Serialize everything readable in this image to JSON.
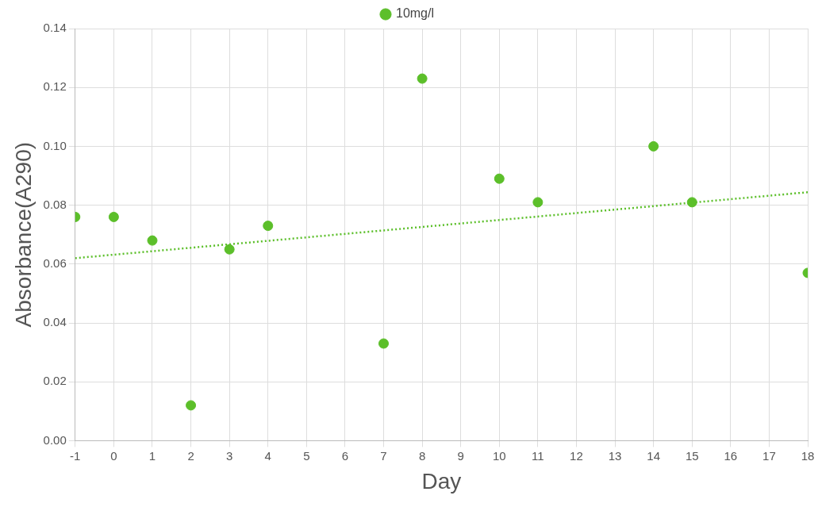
{
  "chart_data": {
    "type": "scatter",
    "xlabel": "Day",
    "ylabel": "Absorbance(A290)",
    "xlim": [
      -1,
      18
    ],
    "xticks": [
      -1,
      0,
      1,
      2,
      3,
      4,
      5,
      6,
      7,
      8,
      9,
      10,
      11,
      12,
      13,
      14,
      15,
      16,
      17,
      18
    ],
    "ylim": [
      0,
      0.14
    ],
    "yticks": [
      {
        "value": 0,
        "label": "0.00"
      },
      {
        "value": 0.02,
        "label": "0.02"
      },
      {
        "value": 0.04,
        "label": "0.04"
      },
      {
        "value": 0.06,
        "label": "0.06"
      },
      {
        "value": 0.08,
        "label": "0.08"
      },
      {
        "value": 0.1,
        "label": "0.10"
      },
      {
        "value": 0.12,
        "label": "0.12"
      },
      {
        "value": 0.14,
        "label": "0.14"
      }
    ],
    "grid": true,
    "legend": "top",
    "marker": "circle",
    "series": [
      {
        "name": "10mg/l",
        "color": "#5cbf2a",
        "x": [
          -1,
          0,
          1,
          2,
          3,
          4,
          7,
          8,
          10,
          11,
          14,
          15,
          18
        ],
        "values": [
          0.076,
          0.076,
          0.068,
          0.012,
          0.065,
          0.073,
          0.033,
          0.123,
          0.089,
          0.081,
          0.1,
          0.081,
          0.057
        ]
      },
      {
        "type": "line",
        "color": "#5cbf2a",
        "line_style": "dotted",
        "marker": "none",
        "x": [
          -1,
          18
        ],
        "values": [
          0.062,
          0.0844
        ]
      }
    ]
  }
}
